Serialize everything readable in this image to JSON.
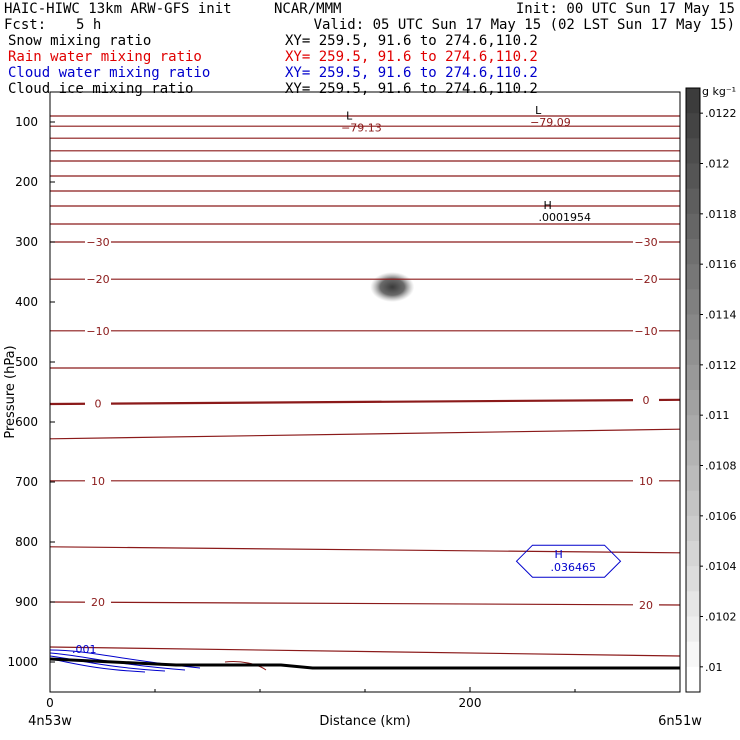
{
  "header": {
    "title": "HAIC-HIWC 13km ARW-GFS init",
    "org": "NCAR/MMM",
    "init": "Init: 00 UTC Sun 17 May 15",
    "fcst_label": "Fcst:",
    "fcst_value": "5 h",
    "valid": "Valid: 05 UTC Sun 17 May 15 (02 LST Sun 17 May 15)"
  },
  "fields": [
    {
      "label": "Snow mixing ratio",
      "xy": "XY= 259.5, 91.6 to 274.6,110.2",
      "color": "#000000"
    },
    {
      "label": "Rain water mixing ratio",
      "xy": "XY= 259.5, 91.6 to 274.6,110.2",
      "color": "#e00000"
    },
    {
      "label": "Cloud water mixing ratio",
      "xy": "XY= 259.5, 91.6 to 274.6,110.2",
      "color": "#0000cc"
    },
    {
      "label": "Cloud ice mixing ratio",
      "xy": "XY= 259.5, 91.6 to 274.6,110.2",
      "color": "#000000"
    }
  ],
  "chart_data": {
    "type": "heatmap",
    "xlabel": "Distance (km)",
    "ylabel": "Pressure (hPa)",
    "xlim": [
      0,
      300
    ],
    "ylim": [
      50,
      1050
    ],
    "y_scale": "linear, inverted",
    "x_ticks": [
      0,
      200
    ],
    "y_ticks": [
      100,
      200,
      300,
      400,
      500,
      600,
      700,
      800,
      900,
      1000
    ],
    "x_endpoint_labels": [
      "4n53w",
      "6n51w"
    ],
    "colorbar": {
      "unit": "g kg⁻¹",
      "ticks": [
        ".01",
        ".0102",
        ".0104",
        ".0106",
        ".0108",
        ".011",
        ".0112",
        ".0114",
        ".0116",
        ".0118",
        ".012",
        ".0122"
      ],
      "range": [
        0.0099,
        0.0123
      ]
    },
    "temperature_contours": {
      "color": "#8b1a1a",
      "lines": [
        {
          "p": [
            90,
            90
          ]
        },
        {
          "p": [
            107,
            107
          ]
        },
        {
          "p": [
            127,
            127
          ]
        },
        {
          "p": [
            148,
            148
          ]
        },
        {
          "p": [
            165,
            165
          ]
        },
        {
          "p": [
            190,
            190
          ]
        },
        {
          "p": [
            215,
            215
          ]
        },
        {
          "p": [
            240,
            240
          ]
        },
        {
          "p": [
            270,
            270
          ]
        },
        {
          "p": [
            300,
            300
          ],
          "label": "−30"
        },
        {
          "p": [
            362,
            362
          ],
          "label": "−20"
        },
        {
          "p": [
            448,
            448
          ],
          "label": "−10"
        },
        {
          "p": [
            510,
            510
          ]
        },
        {
          "p": [
            570,
            563
          ],
          "label": "0"
        },
        {
          "p": [
            628,
            612
          ]
        },
        {
          "p": [
            698,
            698
          ],
          "label": "10"
        },
        {
          "p": [
            808,
            818
          ]
        },
        {
          "p": [
            900,
            905
          ],
          "label": "20"
        },
        {
          "p": [
            975,
            990
          ]
        }
      ]
    },
    "cloud_water_contours": {
      "color": "#0000cc",
      "level_label": ".001",
      "max": {
        "x": 245,
        "p": 832,
        "label": "H",
        "value": ".036465"
      }
    },
    "snow_max": {
      "x": 163,
      "p": 375,
      "value": 0.0121
    },
    "extrema": [
      {
        "label": "L",
        "value": "−79.13",
        "x": 141,
        "p": 96
      },
      {
        "label": "L",
        "value": "−79.09",
        "x": 231,
        "p": 87
      },
      {
        "label": "H",
        "value": ".0001954",
        "x": 235,
        "p": 245
      }
    ],
    "terrain_line": [
      {
        "x": 0,
        "p": 995
      },
      {
        "x": 30,
        "p": 1000
      },
      {
        "x": 60,
        "p": 1005
      },
      {
        "x": 110,
        "p": 1005
      },
      {
        "x": 125,
        "p": 1010
      },
      {
        "x": 300,
        "p": 1010
      }
    ]
  }
}
